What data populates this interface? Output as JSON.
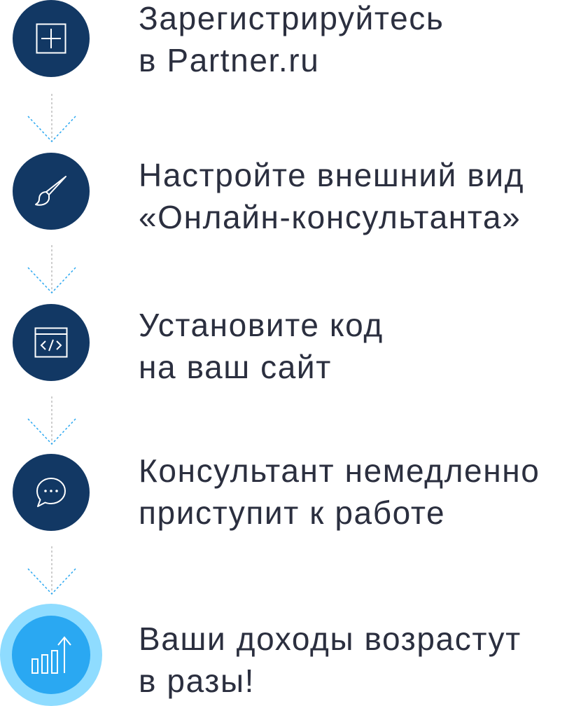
{
  "steps": [
    {
      "icon": "plus-square-icon",
      "line1": "Зарегистрируйтесь",
      "line2": "в Partner.ru"
    },
    {
      "icon": "brush-icon",
      "line1": "Настройте внешний вид",
      "line2": "«Онлайн-консультанта»"
    },
    {
      "icon": "code-window-icon",
      "line1": "Установите код",
      "line2": "на ваш сайт"
    },
    {
      "icon": "chat-bubble-icon",
      "line1": "Консультант немедленно",
      "line2": "приступит к работе"
    },
    {
      "icon": "growth-chart-icon",
      "line1": "Ваши доходы возрастут",
      "line2": "в разы!"
    }
  ],
  "colors": {
    "circle": "#123864",
    "final_outer": "#8fdcff",
    "final_inner": "#2aa8f2",
    "text": "#2b2f3f",
    "connector_line": "#bdbdbd",
    "connector_arrow": "#2aa8f2"
  }
}
